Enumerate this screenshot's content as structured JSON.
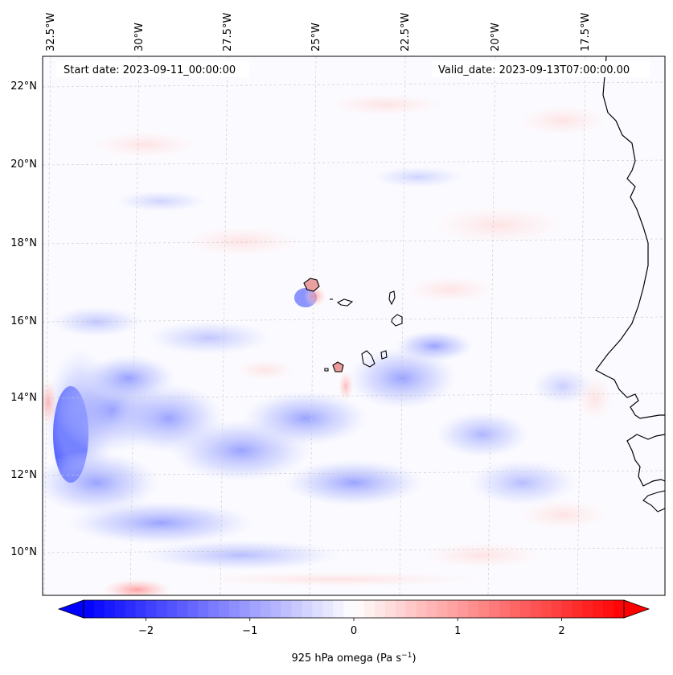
{
  "map": {
    "start_date": "Start date: 2023-09-11_00:00:00",
    "valid_date": "Valid_date: 2023-09-13T07:00:00.00",
    "lon_labels": [
      "32.5°W",
      "30°W",
      "27.5°W",
      "25°W",
      "22.5°W",
      "20°W",
      "17.5°W"
    ],
    "lat_labels": [
      "22°N",
      "20°N",
      "18°N",
      "16°N",
      "14°N",
      "12°N",
      "10°N"
    ],
    "gridlines": true,
    "coastline_color": "#000000"
  },
  "colorbar": {
    "label": "925 hPa omega (Pa s",
    "label_sup": "−1",
    "label_tail": ")",
    "ticks": [
      "−2",
      "−1",
      "0",
      "1",
      "2"
    ],
    "tick_values": [
      -2,
      -1,
      0,
      1,
      2
    ],
    "range": [
      -2.6,
      2.6
    ],
    "colormap": "bwr",
    "extend": "both",
    "low_color": "#0000ff",
    "mid_color": "#ffffff",
    "high_color": "#ff0000"
  }
}
